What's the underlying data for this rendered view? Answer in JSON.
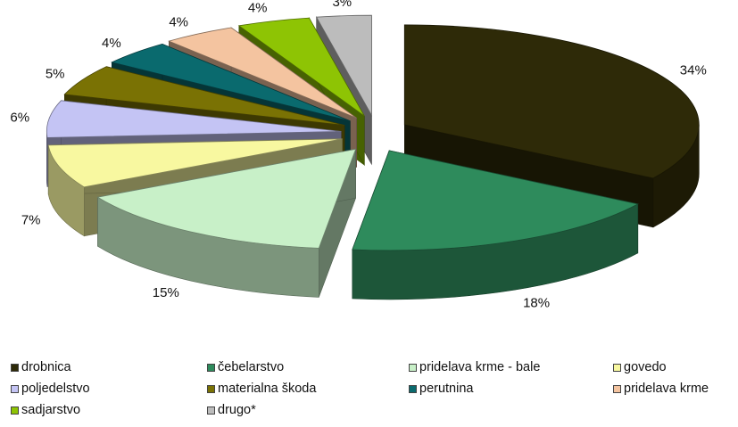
{
  "chart_data": {
    "type": "pie",
    "style": "3d-exploded",
    "categories": [
      "drobnica",
      "čebelarstvo",
      "pridelava krme - bale",
      "govedo",
      "poljedelstvo",
      "materialna škoda",
      "perutnina",
      "pridelava krme",
      "sadjarstvo",
      "drugo*"
    ],
    "values": [
      34,
      18,
      15,
      7,
      6,
      5,
      4,
      4,
      4,
      3
    ],
    "labels": [
      "34%",
      "18%",
      "15%",
      "7%",
      "6%",
      "5%",
      "4%",
      "4%",
      "4%",
      "3%"
    ],
    "colors": [
      "#2e2a08",
      "#2e8b5c",
      "#c8f0c8",
      "#f8f8a0",
      "#c4c4f4",
      "#7a7204",
      "#0a6a6e",
      "#f4c4a0",
      "#8ec404",
      "#bcbcbc"
    ],
    "title": "",
    "legend_position": "bottom"
  }
}
